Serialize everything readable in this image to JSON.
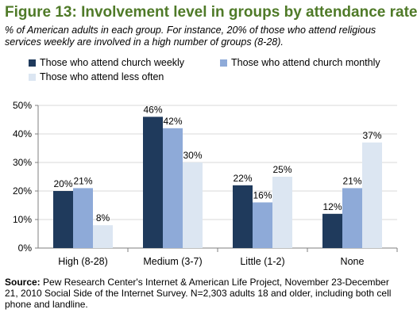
{
  "title": "Figure 13: Involvement level in groups by attendance rate",
  "subtitle": "% of American adults in each group. For instance, 20% of those who attend religious services weekly are involved in a high number of groups (8-28).",
  "source_label": "Source:",
  "source_text": "Pew Research Center's Internet & American Life Project, November 23-December 21, 2010 Social Side of the Internet Survey. N=2,303 adults 18 and older, including both cell phone and landline.",
  "colors": {
    "title": "#4f7a28",
    "weekly": "#1f3a5c",
    "monthly": "#8eaad8",
    "less_often": "#dce6f2",
    "grid": "#d9d9d9",
    "axis": "#7f7f7f"
  },
  "chart_data": {
    "type": "bar",
    "categories": [
      "High (8-28)",
      "Medium (3-7)",
      "Little (1-2)",
      "None"
    ],
    "series": [
      {
        "name": "Those who attend church weekly",
        "values": [
          20,
          46,
          22,
          12
        ],
        "color": "#1f3a5c"
      },
      {
        "name": "Those who attend church monthly",
        "values": [
          21,
          42,
          16,
          21
        ],
        "color": "#8eaad8"
      },
      {
        "name": "Those who attend less often",
        "values": [
          8,
          30,
          25,
          37
        ],
        "color": "#dce6f2"
      }
    ],
    "data_labels": [
      [
        "20%",
        "46%",
        "22%",
        "12%"
      ],
      [
        "21%",
        "42%",
        "16%",
        "21%"
      ],
      [
        "8%",
        "30%",
        "25%",
        "37%"
      ]
    ],
    "yticks": [
      0,
      10,
      20,
      30,
      40,
      50
    ],
    "ytick_labels": [
      "0%",
      "10%",
      "20%",
      "30%",
      "40%",
      "50%"
    ],
    "ylim": [
      0,
      50
    ],
    "grid": true,
    "legend_position": "top",
    "xlabel": "",
    "ylabel": ""
  }
}
